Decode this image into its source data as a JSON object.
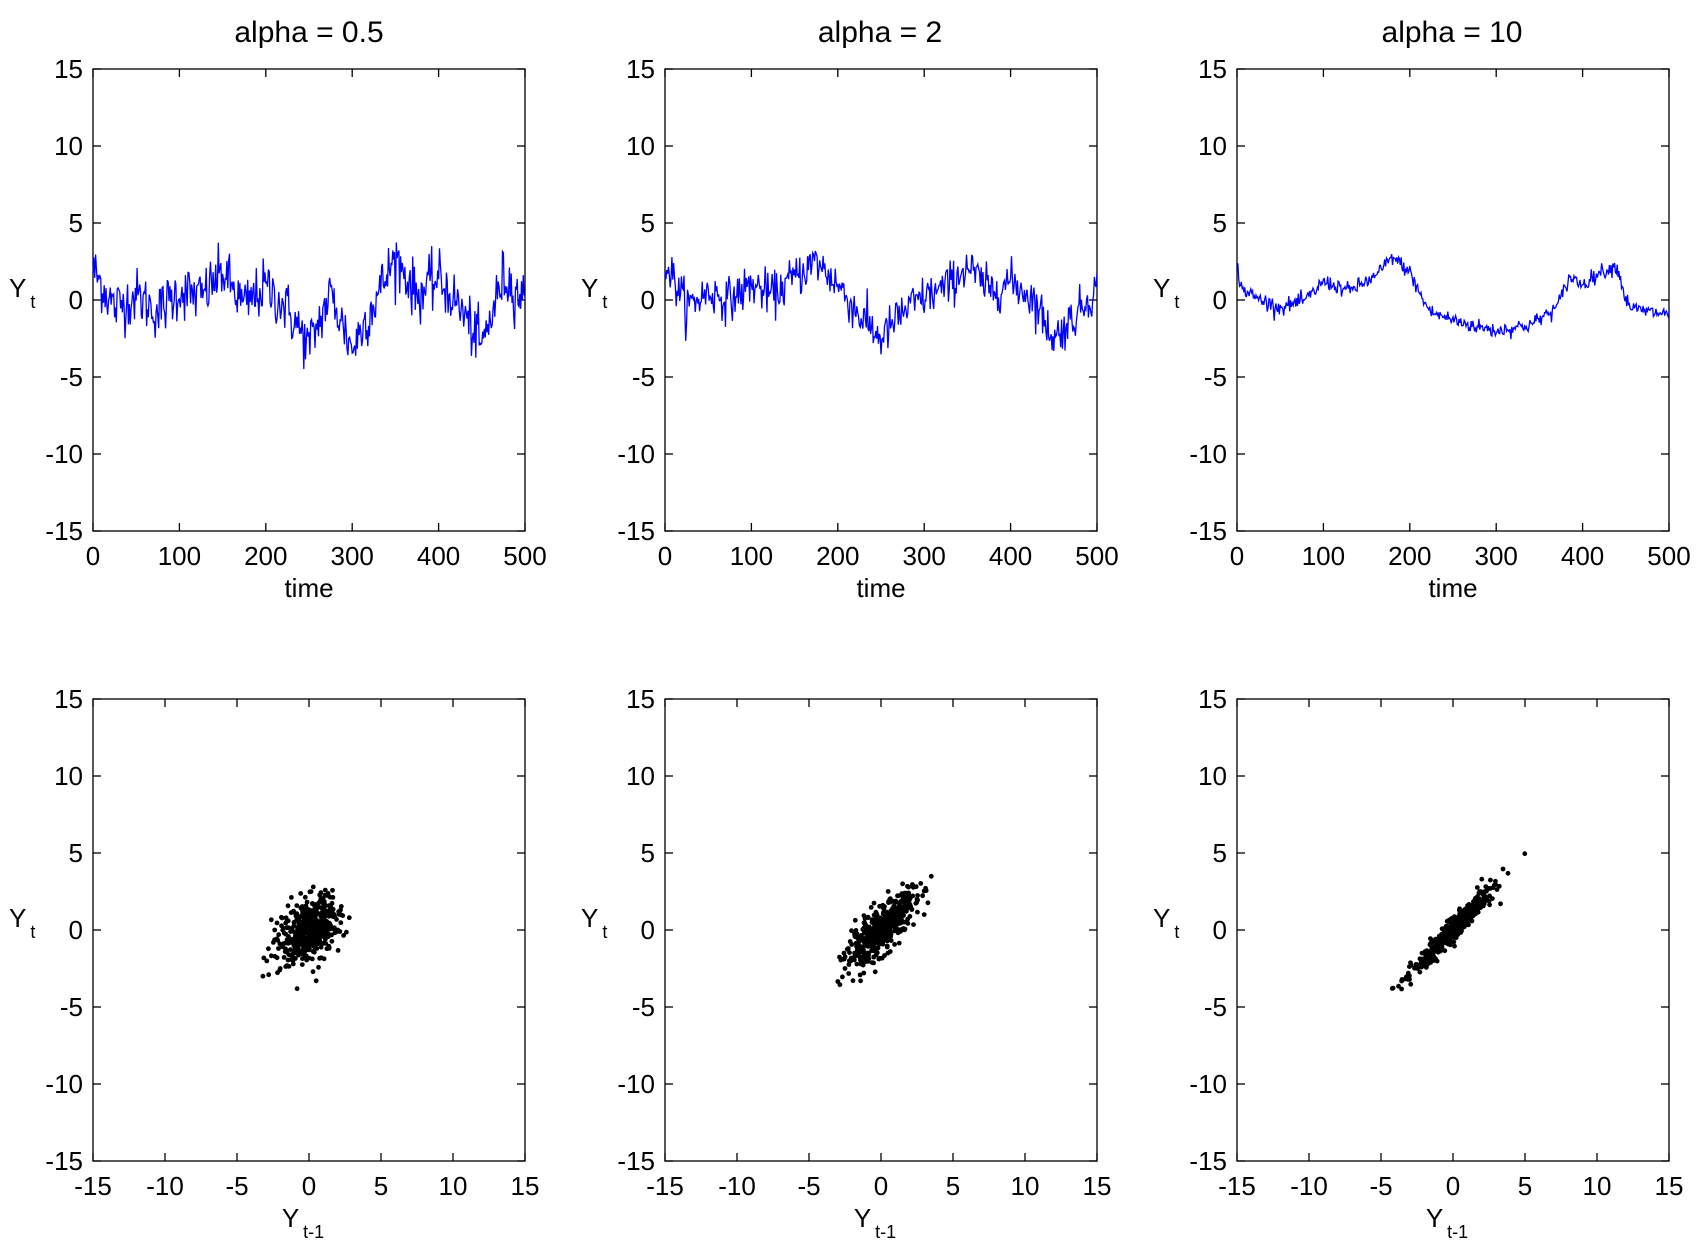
{
  "figure": {
    "titles": [
      "alpha = 0.5",
      "alpha = 2",
      "alpha = 10"
    ],
    "series_color": "#0000ff",
    "scatter_color": "#000000"
  },
  "chart_data": [
    {
      "type": "line",
      "title": "alpha = 0.5",
      "xlabel": "time",
      "ylabel": {
        "main": "Y",
        "sub": "t"
      },
      "xlim": [
        0,
        500
      ],
      "ylim": [
        -15,
        15
      ],
      "xticks": [
        0,
        100,
        200,
        300,
        400,
        500
      ],
      "yticks": [
        15,
        10,
        5,
        0,
        -5,
        -10,
        -15
      ],
      "xtick_labels": [
        "0",
        "100",
        "200",
        "300",
        "400",
        "500"
      ],
      "ytick_labels": [
        "15",
        "10",
        "5",
        "0",
        "-5",
        "-10",
        "-15"
      ],
      "grid": false,
      "series": [
        {
          "color": "#0000ff",
          "x": [
            0,
            25,
            50,
            75,
            100,
            125,
            150,
            175,
            200,
            225,
            250,
            275,
            300,
            325,
            350,
            375,
            400,
            425,
            450,
            475,
            500
          ],
          "y": [
            2.0,
            -0.5,
            0.3,
            -0.8,
            0.6,
            0.2,
            1.8,
            -0.4,
            0.9,
            -0.6,
            -3.0,
            0.4,
            -3.2,
            -0.2,
            2.8,
            0.3,
            1.4,
            -0.5,
            -3.0,
            1.5,
            0.0
          ]
        }
      ]
    },
    {
      "type": "line",
      "title": "alpha = 2",
      "xlabel": "time",
      "ylabel": {
        "main": "Y",
        "sub": "t"
      },
      "xlim": [
        0,
        500
      ],
      "ylim": [
        -15,
        15
      ],
      "xticks": [
        0,
        100,
        200,
        300,
        400,
        500
      ],
      "yticks": [
        15,
        10,
        5,
        0,
        -5,
        -10,
        -15
      ],
      "xtick_labels": [
        "0",
        "100",
        "200",
        "300",
        "400",
        "500"
      ],
      "ytick_labels": [
        "15",
        "10",
        "5",
        "0",
        "-5",
        "-10",
        "-15"
      ],
      "grid": false,
      "series": [
        {
          "color": "#0000ff",
          "x": [
            0,
            25,
            50,
            75,
            100,
            125,
            150,
            175,
            200,
            225,
            250,
            275,
            300,
            325,
            350,
            375,
            400,
            425,
            450,
            475,
            500
          ],
          "y": [
            2.5,
            -0.4,
            0.5,
            0.0,
            1.0,
            0.3,
            1.5,
            2.5,
            1.0,
            -1.0,
            -2.5,
            -0.8,
            0.2,
            0.8,
            2.2,
            0.6,
            1.2,
            0.2,
            -2.5,
            -1.0,
            0.8
          ]
        }
      ]
    },
    {
      "type": "line",
      "title": "alpha = 10",
      "xlabel": "time",
      "ylabel": {
        "main": "Y",
        "sub": "t"
      },
      "xlim": [
        0,
        500
      ],
      "ylim": [
        -15,
        15
      ],
      "xticks": [
        0,
        100,
        200,
        300,
        400,
        500
      ],
      "yticks": [
        15,
        10,
        5,
        0,
        -5,
        -10,
        -15
      ],
      "xtick_labels": [
        "0",
        "100",
        "200",
        "300",
        "400",
        "500"
      ],
      "ytick_labels": [
        "15",
        "10",
        "5",
        "0",
        "-5",
        "-10",
        "-15"
      ],
      "grid": false,
      "series": [
        {
          "color": "#0000ff",
          "x": [
            0,
            5,
            20,
            50,
            80,
            100,
            130,
            160,
            180,
            200,
            215,
            225,
            250,
            275,
            300,
            340,
            370,
            385,
            400,
            420,
            440,
            450,
            460,
            480,
            500
          ],
          "y": [
            2.3,
            0.8,
            0.2,
            -0.5,
            0.0,
            1.2,
            0.6,
            1.5,
            2.8,
            1.8,
            0.0,
            -0.8,
            -1.3,
            -1.7,
            -2.0,
            -1.6,
            -0.5,
            1.5,
            1.0,
            1.8,
            2.2,
            0.0,
            -0.6,
            -0.8,
            -0.9
          ]
        }
      ]
    },
    {
      "type": "scatter",
      "xlabel": {
        "main": "Y",
        "sub": "t-1"
      },
      "ylabel": {
        "main": "Y",
        "sub": "t"
      },
      "xlim": [
        -15,
        15
      ],
      "ylim": [
        -15,
        15
      ],
      "xticks": [
        -15,
        -10,
        -5,
        0,
        5,
        10,
        15
      ],
      "yticks": [
        15,
        10,
        5,
        0,
        -5,
        -10,
        -15
      ],
      "xtick_labels": [
        "-15",
        "-10",
        "-5",
        "0",
        "5",
        "10",
        "15"
      ],
      "ytick_labels": [
        "15",
        "10",
        "5",
        "0",
        "-5",
        "-10",
        "-15"
      ],
      "grid": false,
      "cloud": {
        "count": 500,
        "center": [
          0.0,
          0.0
        ],
        "sd": [
          1.0,
          1.0
        ],
        "correlation": 0.35
      },
      "series": [
        {
          "color": "#000000",
          "x": [
            -3.2,
            -2.8,
            0.5,
            2.8,
            -2.0,
            1.5,
            0.3,
            -1.0,
            2.0,
            -0.5
          ],
          "y": [
            -3.0,
            -2.9,
            -3.3,
            0.8,
            -2.5,
            1.5,
            2.8,
            -1.5,
            0.0,
            1.5
          ]
        }
      ]
    },
    {
      "type": "scatter",
      "xlabel": {
        "main": "Y",
        "sub": "t-1"
      },
      "ylabel": {
        "main": "Y",
        "sub": "t"
      },
      "xlim": [
        -15,
        15
      ],
      "ylim": [
        -15,
        15
      ],
      "xticks": [
        -15,
        -10,
        -5,
        0,
        5,
        10,
        15
      ],
      "yticks": [
        15,
        10,
        5,
        0,
        -5,
        -10,
        -15
      ],
      "xtick_labels": [
        "-15",
        "-10",
        "-5",
        "0",
        "5",
        "10",
        "15"
      ],
      "ytick_labels": [
        "15",
        "10",
        "5",
        "0",
        "-5",
        "-10",
        "-15"
      ],
      "grid": false,
      "cloud": {
        "count": 500,
        "center": [
          0.0,
          0.0
        ],
        "sd": [
          1.2,
          1.2
        ],
        "correlation": 0.8
      },
      "series": [
        {
          "color": "#000000",
          "x": [
            -2.5,
            -2.2,
            3.0,
            1.5,
            2.5,
            -1.5,
            0.5
          ],
          "y": [
            -2.5,
            -2.0,
            1.0,
            3.0,
            2.0,
            -1.0,
            2.5
          ]
        }
      ]
    },
    {
      "type": "scatter",
      "xlabel": {
        "main": "Y",
        "sub": "t-1"
      },
      "ylabel": {
        "main": "Y",
        "sub": "t"
      },
      "xlim": [
        -15,
        15
      ],
      "ylim": [
        -15,
        15
      ],
      "xticks": [
        -15,
        -10,
        -5,
        0,
        5,
        10,
        15
      ],
      "yticks": [
        15,
        10,
        5,
        0,
        -5,
        -10,
        -15
      ],
      "xtick_labels": [
        "-15",
        "-10",
        "-5",
        "0",
        "5",
        "10",
        "15"
      ],
      "ytick_labels": [
        "15",
        "10",
        "5",
        "0",
        "-5",
        "-10",
        "-15"
      ],
      "grid": false,
      "cloud": {
        "count": 500,
        "center": [
          0.0,
          0.0
        ],
        "sd": [
          1.4,
          1.4
        ],
        "correlation": 0.97
      },
      "series": [
        {
          "color": "#000000",
          "x": [
            -2.0,
            -1.8,
            2.0,
            3.3,
            1.8,
            0.5
          ],
          "y": [
            -2.0,
            -1.9,
            3.3,
            1.7,
            2.4,
            0.6
          ]
        }
      ]
    }
  ]
}
